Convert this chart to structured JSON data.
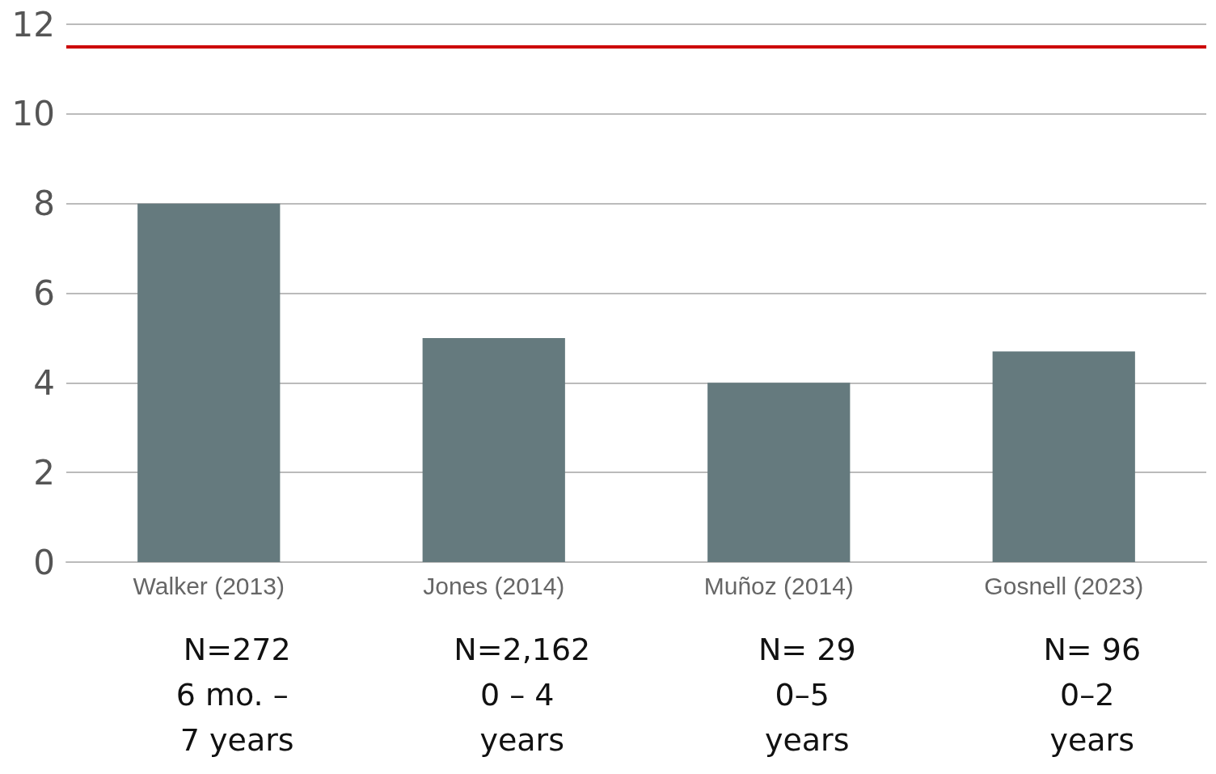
{
  "chart_data": {
    "type": "bar",
    "categories": [
      "Walker (2013)",
      "Jones (2014)",
      "Muñoz (2014)",
      "Gosnell (2023)"
    ],
    "values": [
      8,
      5,
      4,
      4.7
    ],
    "color": "#657a7e",
    "ylim": [
      0,
      12
    ],
    "yticks": [
      0,
      2,
      4,
      6,
      8,
      10,
      12
    ],
    "grid": "y",
    "ref_lines": [
      {
        "axis": "y",
        "value": 11.5,
        "color": "#cc0000",
        "line_style": "solid"
      }
    ],
    "annotations": [
      "N=272\n6 mo. – 7 years",
      "N=2,162\n0 – 4 years",
      "N= 29\n0–5 years",
      "N= 96\n0–2 years"
    ]
  }
}
